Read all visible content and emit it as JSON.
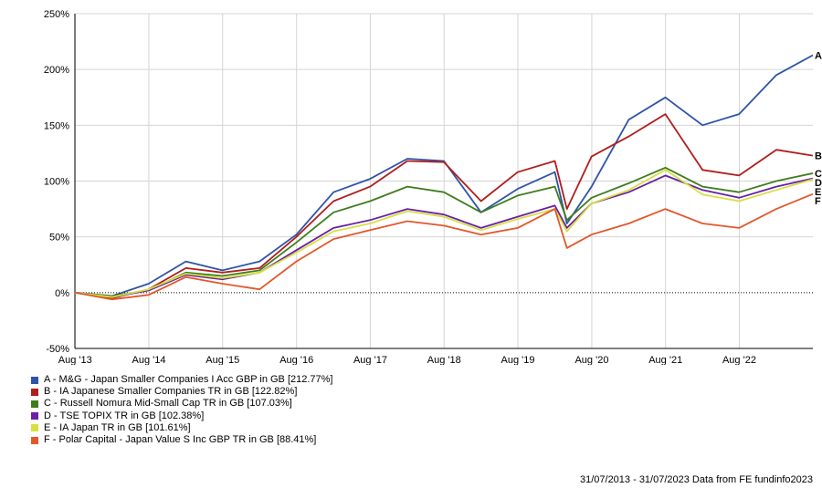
{
  "chart_data": {
    "type": "line",
    "title": "",
    "xlabel": "",
    "ylabel": "",
    "ylim": [
      -50,
      250
    ],
    "xlim": [
      "2013-07-31",
      "2023-07-31"
    ],
    "y_ticks": [
      -50,
      0,
      50,
      100,
      150,
      200,
      250
    ],
    "y_tick_labels": [
      "-50%",
      "0%",
      "50%",
      "100%",
      "150%",
      "200%",
      "250%"
    ],
    "x_ticks": [
      "2013-08-01",
      "2014-08-01",
      "2015-08-01",
      "2016-08-01",
      "2017-08-01",
      "2018-08-01",
      "2019-08-01",
      "2020-08-01",
      "2021-08-01",
      "2022-08-01"
    ],
    "x_tick_labels": [
      "Aug '13",
      "Aug '14",
      "Aug '15",
      "Aug '16",
      "Aug '17",
      "Aug '18",
      "Aug '19",
      "Aug '20",
      "Aug '21",
      "Aug '22"
    ],
    "grid": true,
    "zero_line": "dotted",
    "legend_position": "bottom-left",
    "x_dates": [
      "2013-07-31",
      "2014-01-31",
      "2014-07-31",
      "2015-01-31",
      "2015-07-31",
      "2016-01-31",
      "2016-07-31",
      "2017-01-31",
      "2017-07-31",
      "2018-01-31",
      "2018-07-31",
      "2019-01-31",
      "2019-07-31",
      "2020-01-31",
      "2020-03-31",
      "2020-07-31",
      "2021-01-31",
      "2021-07-31",
      "2022-01-31",
      "2022-07-31",
      "2023-01-31",
      "2023-07-31"
    ],
    "series": [
      {
        "tag": "A",
        "name": "A - M&G - Japan Smaller Companies I Acc GBP in GB [212.77%]",
        "color": "#2e54a6",
        "values": [
          0,
          -3,
          8,
          28,
          20,
          28,
          52,
          90,
          102,
          120,
          118,
          72,
          93,
          108,
          62,
          95,
          155,
          175,
          150,
          160,
          195,
          212.77
        ]
      },
      {
        "tag": "B",
        "name": "B - IA Japanese Smaller Companies TR in GB [122.82%]",
        "color": "#b01e1e",
        "values": [
          0,
          -5,
          3,
          22,
          18,
          22,
          50,
          82,
          95,
          118,
          117,
          82,
          108,
          118,
          75,
          122,
          140,
          160,
          110,
          105,
          128,
          122.82
        ]
      },
      {
        "tag": "C",
        "name": "C - Russell Nomura Mid-Small Cap TR in GB [107.03%]",
        "color": "#3e7d1e",
        "values": [
          0,
          -3,
          2,
          18,
          15,
          20,
          45,
          72,
          82,
          95,
          90,
          72,
          87,
          95,
          65,
          85,
          98,
          112,
          95,
          90,
          100,
          107.03
        ]
      },
      {
        "tag": "D",
        "name": "D - TSE TOPIX TR in GB [102.38%]",
        "color": "#6a1fa6",
        "values": [
          0,
          -4,
          2,
          16,
          12,
          18,
          38,
          58,
          65,
          75,
          70,
          58,
          68,
          78,
          58,
          80,
          90,
          105,
          92,
          85,
          95,
          102.38
        ]
      },
      {
        "tag": "E",
        "name": "E - IA Japan TR in GB [101.61%]",
        "color": "#d6e040",
        "values": [
          0,
          -4,
          3,
          17,
          13,
          18,
          36,
          55,
          62,
          73,
          68,
          56,
          66,
          75,
          55,
          80,
          92,
          110,
          88,
          82,
          92,
          101.61
        ]
      },
      {
        "tag": "F",
        "name": "F - Polar Capital - Japan Value S Inc GBP TR in GB [88.41%]",
        "color": "#e3572b",
        "values": [
          0,
          -6,
          -2,
          14,
          8,
          3,
          28,
          48,
          56,
          64,
          60,
          52,
          58,
          75,
          40,
          52,
          62,
          75,
          62,
          58,
          75,
          88.41
        ]
      }
    ]
  },
  "footer": {
    "text": "31/07/2013 - 31/07/2023 Data from FE fundinfo2023"
  }
}
